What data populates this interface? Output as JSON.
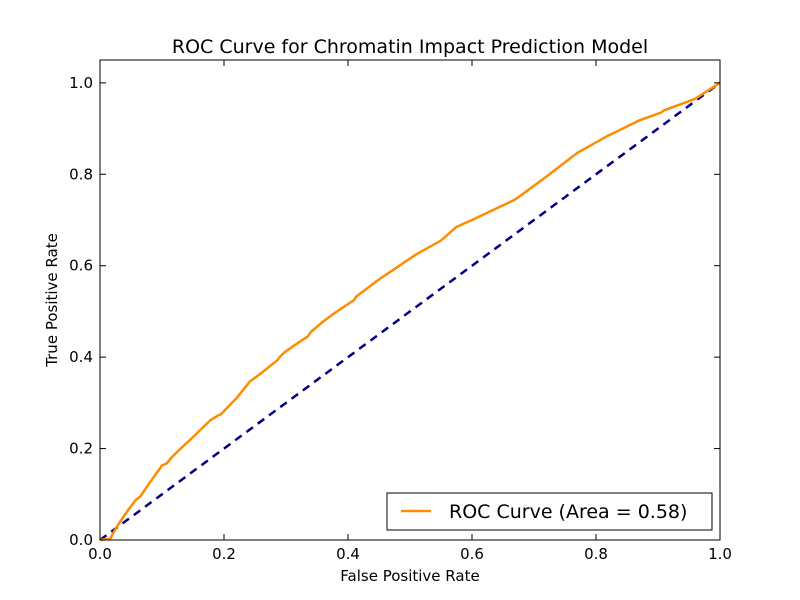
{
  "chart_data": {
    "type": "line",
    "title": "ROC Curve for Chromatin Impact Prediction Model",
    "xlabel": "False Positive Rate",
    "ylabel": "True Positive Rate",
    "xlim": [
      0.0,
      1.0
    ],
    "ylim": [
      0.0,
      1.05
    ],
    "xticks": [
      0.0,
      0.2,
      0.4,
      0.6,
      0.8,
      1.0
    ],
    "yticks": [
      0.0,
      0.2,
      0.4,
      0.6,
      0.8,
      1.0
    ],
    "xtick_labels": [
      "0.0",
      "0.2",
      "0.4",
      "0.6",
      "0.8",
      "1.0"
    ],
    "ytick_labels": [
      "0.0",
      "0.2",
      "0.4",
      "0.6",
      "0.8",
      "1.0"
    ],
    "grid": false,
    "legend_position": "lower-right",
    "series": [
      {
        "name": "ROC Curve (Area = 0.58)",
        "color": "#ff8c00",
        "style": "solid",
        "x": [
          0.0,
          0.017,
          0.02,
          0.03,
          0.045,
          0.058,
          0.065,
          0.08,
          0.1,
          0.108,
          0.115,
          0.13,
          0.15,
          0.165,
          0.178,
          0.19,
          0.195,
          0.22,
          0.242,
          0.26,
          0.285,
          0.29,
          0.297,
          0.32,
          0.335,
          0.34,
          0.36,
          0.38,
          0.41,
          0.413,
          0.45,
          0.51,
          0.55,
          0.575,
          0.6,
          0.67,
          0.72,
          0.77,
          0.82,
          0.825,
          0.87,
          0.905,
          0.91,
          0.96,
          1.0
        ],
        "y": [
          0.0,
          0.003,
          0.012,
          0.035,
          0.065,
          0.088,
          0.095,
          0.125,
          0.163,
          0.168,
          0.18,
          0.2,
          0.225,
          0.245,
          0.262,
          0.272,
          0.275,
          0.31,
          0.347,
          0.365,
          0.392,
          0.4,
          0.41,
          0.432,
          0.445,
          0.455,
          0.478,
          0.498,
          0.525,
          0.532,
          0.57,
          0.625,
          0.655,
          0.685,
          0.7,
          0.745,
          0.795,
          0.847,
          0.885,
          0.888,
          0.918,
          0.935,
          0.94,
          0.965,
          1.0
        ]
      },
      {
        "name": "",
        "color": "#000080",
        "style": "dashed",
        "x": [
          0.0,
          1.0
        ],
        "y": [
          0.0,
          1.0
        ]
      }
    ]
  }
}
